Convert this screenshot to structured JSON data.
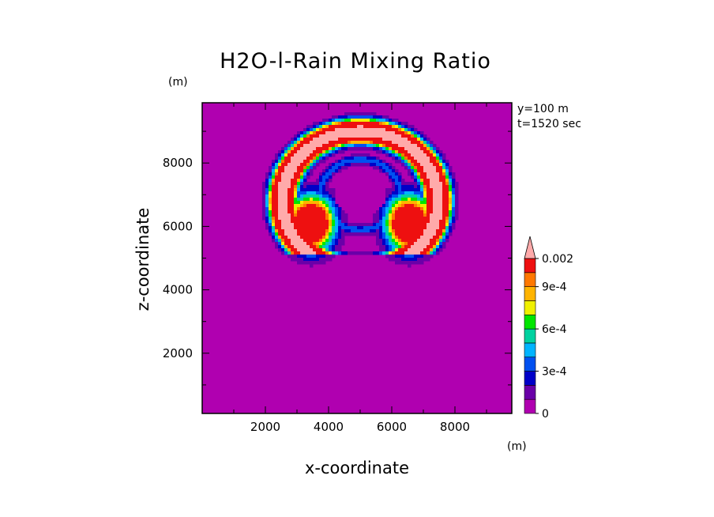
{
  "chart_data": {
    "type": "heatmap",
    "title": "H2O-l-Rain Mixing Ratio",
    "xlabel": "x-coordinate",
    "ylabel": "z-coordinate",
    "x_unit": "(m)",
    "y_unit": "(m)",
    "annotation_y": "y=100 m",
    "annotation_t": "t=1520 sec",
    "xlim": [
      0,
      9800
    ],
    "ylim": [
      100,
      9900
    ],
    "x_ticks": [
      "2000",
      "4000",
      "6000",
      "8000"
    ],
    "y_ticks": [
      "2000",
      "4000",
      "6000",
      "8000"
    ],
    "colorbar": {
      "levels": [
        0,
        0.0001,
        0.0002,
        0.0003,
        0.0004,
        0.0005,
        0.0006,
        0.0007,
        0.0008,
        0.0009,
        0.001,
        0.002
      ],
      "labels": [
        "0",
        "3e-4",
        "6e-4",
        "9e-4",
        "0.002"
      ],
      "label_levels": [
        0,
        0.0003,
        0.0006,
        0.0009,
        0.002
      ],
      "colors": [
        "#b000b0",
        "#6a00a8",
        "#0000c8",
        "#0050f0",
        "#00b4ff",
        "#00d2a0",
        "#00e600",
        "#f0f000",
        "#ffb400",
        "#ff7800",
        "#ee1010",
        "#ffaaaa"
      ],
      "extend_max": true
    },
    "field": {
      "background": 0,
      "feature": "mushroom-shaped rain shell",
      "shell_center": [
        5000,
        6500
      ],
      "shell_peak": 0.0025,
      "core_value": 5e-05
    }
  }
}
